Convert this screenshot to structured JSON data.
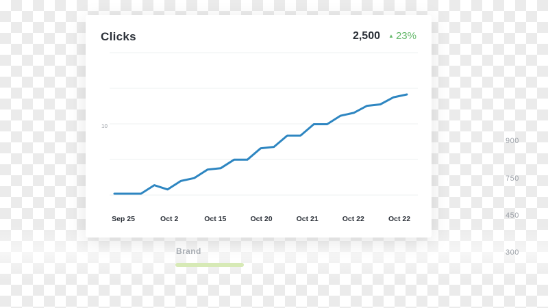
{
  "card": {
    "title": "Clicks",
    "total": "2,500",
    "change": "23%",
    "change_direction": "up",
    "change_color": "#64b86a"
  },
  "chart_data": {
    "type": "line",
    "x_tick_labels": [
      "Sep 25",
      "Oct 2",
      "Oct 15",
      "Oct 20",
      "Oct 21",
      "Oct 22",
      "Oct 22"
    ],
    "y_tick_labels_inner": [
      "10"
    ],
    "y_tick_labels_outer": [
      "900",
      "750",
      "450",
      "300"
    ],
    "grid": true,
    "series": [
      {
        "color": "#2e86c1",
        "values": [
          0.0,
          0.0,
          0.0,
          0.06,
          0.03,
          0.09,
          0.11,
          0.17,
          0.18,
          0.24,
          0.24,
          0.32,
          0.33,
          0.41,
          0.41,
          0.49,
          0.49,
          0.55,
          0.57,
          0.62,
          0.63,
          0.68,
          0.7
        ]
      }
    ]
  },
  "legend": {
    "label": "Brand",
    "color": "#d7eab6"
  }
}
